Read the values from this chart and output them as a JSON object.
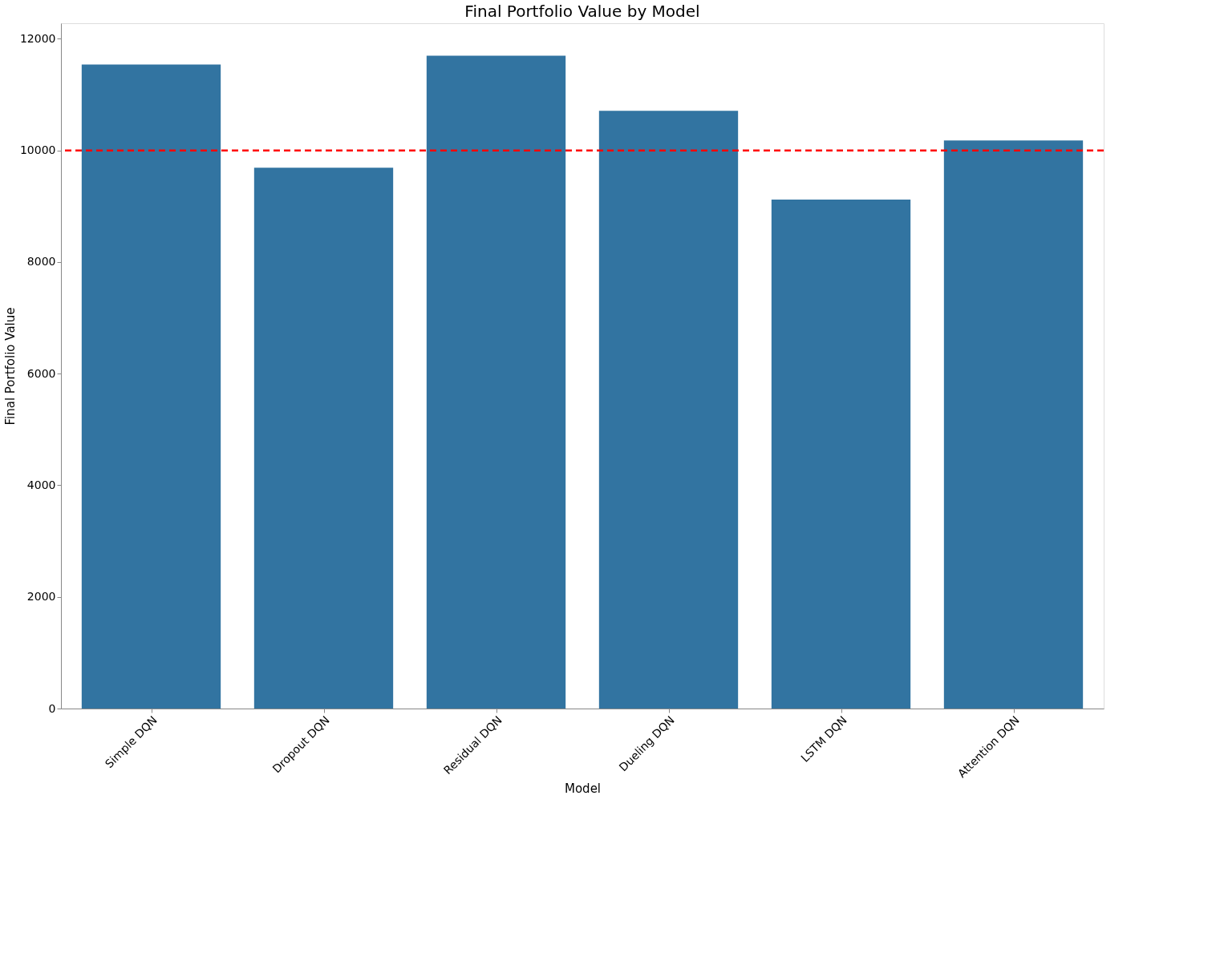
{
  "chart_data": {
    "type": "bar",
    "title": "Final Portfolio Value by Model",
    "xlabel": "Model",
    "ylabel": "Final Portfolio Value",
    "categories": [
      "Simple DQN",
      "Dropout DQN",
      "Residual DQN",
      "Dueling DQN",
      "LSTM DQN",
      "Attention DQN"
    ],
    "values": [
      11540,
      9690,
      11700,
      10710,
      9120,
      10180
    ],
    "color": "#3274a1",
    "ylim": [
      0,
      12280
    ],
    "yticks": [
      0,
      2000,
      4000,
      6000,
      8000,
      10000,
      12000
    ],
    "ref_lines": [
      {
        "axis": "y",
        "value": 10000,
        "color": "#ff0000",
        "line_style": "dashed"
      }
    ],
    "grid": false
  }
}
